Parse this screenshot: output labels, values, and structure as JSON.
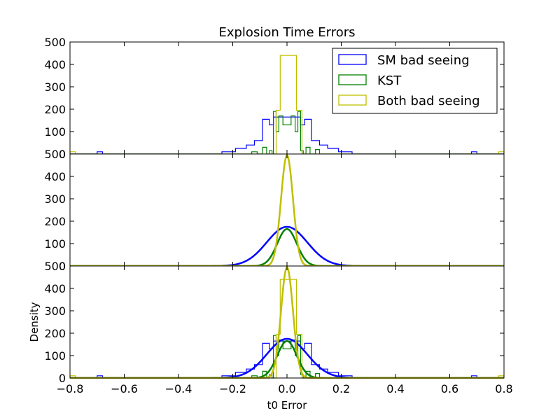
{
  "chart_data": {
    "type": "histogram+density",
    "title": "Explosion Time Errors",
    "xlabel": "t0 Error",
    "ylabel": "Density",
    "xlim": [
      -0.8,
      0.8
    ],
    "ylim": [
      0,
      500
    ],
    "x_ticks": [
      "−0.8",
      "−0.6",
      "−0.4",
      "−0.2",
      "0.0",
      "0.2",
      "0.4",
      "0.6",
      "0.8"
    ],
    "y_ticks_panel": [
      "0",
      "100",
      "200",
      "300",
      "400",
      "500"
    ],
    "legend": {
      "location": "upper-right of top panel",
      "entries": [
        "SM bad seeing",
        "KST",
        "Both bad seeing"
      ]
    },
    "colors": {
      "sm": "#0000ff",
      "kst": "#008000",
      "both": "#bfbf00"
    },
    "panels": [
      {
        "name": "histograms",
        "content": "step histograms"
      },
      {
        "name": "fitted-densities",
        "content": "gaussian curves"
      },
      {
        "name": "overlay",
        "content": "histograms + gaussian curves"
      }
    ],
    "series": [
      {
        "name": "SM bad seeing",
        "histogram_steps": [
          [
            -0.8,
            0
          ],
          [
            -0.7,
            10
          ],
          [
            -0.68,
            0
          ],
          [
            -0.24,
            10
          ],
          [
            -0.19,
            25
          ],
          [
            -0.15,
            40
          ],
          [
            -0.12,
            60
          ],
          [
            -0.09,
            155
          ],
          [
            -0.065,
            130
          ],
          [
            -0.05,
            165
          ],
          [
            -0.03,
            165
          ],
          [
            0.03,
            165
          ],
          [
            0.05,
            130
          ],
          [
            0.065,
            155
          ],
          [
            0.09,
            60
          ],
          [
            0.12,
            40
          ],
          [
            0.15,
            25
          ],
          [
            0.19,
            10
          ],
          [
            0.24,
            0
          ],
          [
            0.68,
            10
          ],
          [
            0.7,
            0
          ]
        ],
        "gaussian": {
          "mean": 0.0,
          "sigma": 0.0745,
          "peak": 175
        }
      },
      {
        "name": "KST",
        "histogram_steps": [
          [
            -0.8,
            0
          ],
          [
            -0.13,
            10
          ],
          [
            -0.11,
            0
          ],
          [
            -0.09,
            30
          ],
          [
            -0.075,
            0
          ],
          [
            -0.065,
            15
          ],
          [
            -0.055,
            0
          ],
          [
            -0.05,
            190
          ],
          [
            -0.04,
            100
          ],
          [
            -0.03,
            170
          ],
          [
            -0.015,
            130
          ],
          [
            0.015,
            170
          ],
          [
            0.03,
            100
          ],
          [
            0.04,
            190
          ],
          [
            0.05,
            15
          ],
          [
            0.06,
            0
          ],
          [
            0.07,
            30
          ],
          [
            0.085,
            0
          ],
          [
            0.105,
            20
          ],
          [
            0.12,
            0
          ]
        ],
        "gaussian": {
          "mean": 0.0,
          "sigma": 0.036,
          "peak": 165
        }
      },
      {
        "name": "Both bad seeing",
        "histogram_steps": [
          [
            -0.8,
            10
          ],
          [
            -0.78,
            0
          ],
          [
            -0.04,
            195
          ],
          [
            -0.025,
            440
          ],
          [
            0.035,
            195
          ],
          [
            0.055,
            0
          ],
          [
            0.78,
            10
          ],
          [
            0.8,
            0
          ]
        ],
        "gaussian": {
          "mean": 0.0,
          "sigma": 0.022,
          "peak": 495
        }
      }
    ]
  }
}
